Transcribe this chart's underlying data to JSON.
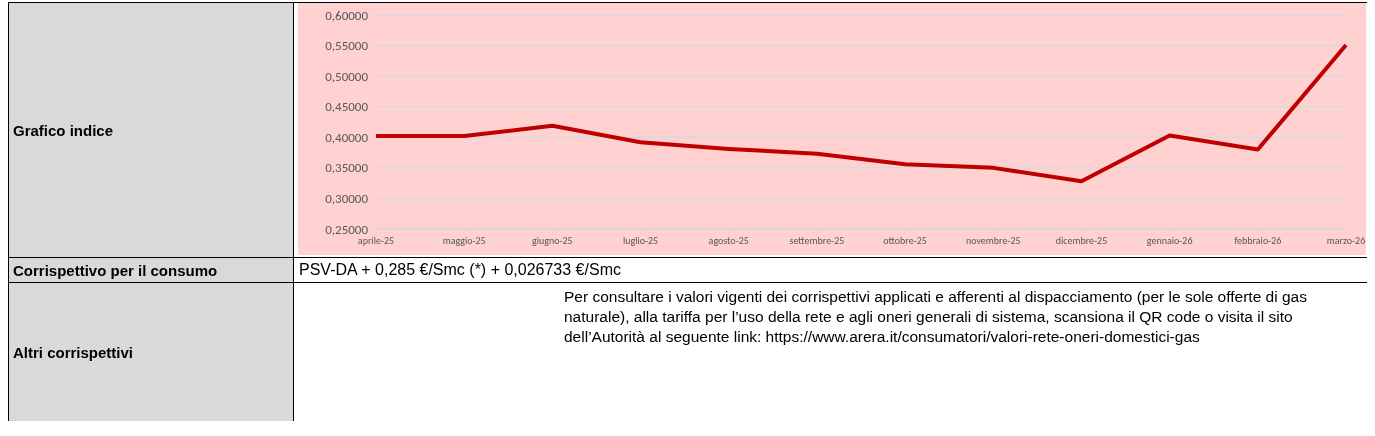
{
  "chart_data": {
    "type": "line",
    "categories": [
      "aprile-25",
      "maggio-25",
      "giugno-25",
      "luglio-25",
      "agosto-25",
      "settembre-25",
      "ottobre-25",
      "novembre-25",
      "dicembre-25",
      "gennaio-26",
      "febbraio-26",
      "marzo-26"
    ],
    "values": [
      0.402,
      0.402,
      0.419,
      0.392,
      0.381,
      0.373,
      0.356,
      0.35,
      0.328,
      0.403,
      0.38,
      0.551
    ],
    "color": "#c00000",
    "ylim": [
      0.25,
      0.6
    ],
    "yticks": [
      {
        "value": 0.25,
        "label": "0,25000"
      },
      {
        "value": 0.3,
        "label": "0,30000"
      },
      {
        "value": 0.35,
        "label": "0,35000"
      },
      {
        "value": 0.4,
        "label": "0,40000"
      },
      {
        "value": 0.45,
        "label": "0,45000"
      },
      {
        "value": 0.5,
        "label": "0,50000"
      },
      {
        "value": 0.55,
        "label": "0,55000"
      },
      {
        "value": 0.6,
        "label": "0,60000"
      }
    ],
    "grid": "y",
    "marker": "none",
    "line_style": "solid",
    "legend": false,
    "annotations": [
      "Grafico indice",
      "Corrispettivo per il consumo",
      "PSV-DA + 0,285 €/Smc (*) + 0,026733 €/Smc",
      "Altri corrispettivi",
      "Per consultare i valori vigenti dei corrispettivi applicati e afferenti al dispacciamento (per le sole offerte di gas naturale), alla tariffa per l’uso della rete e agli oneri generali di sistema, scansiona il QR code o visita il sito dell’Autorità al seguente link: https://www.arera.it/consumatori/valori-rete-oneri-domestici-gas"
    ]
  }
}
